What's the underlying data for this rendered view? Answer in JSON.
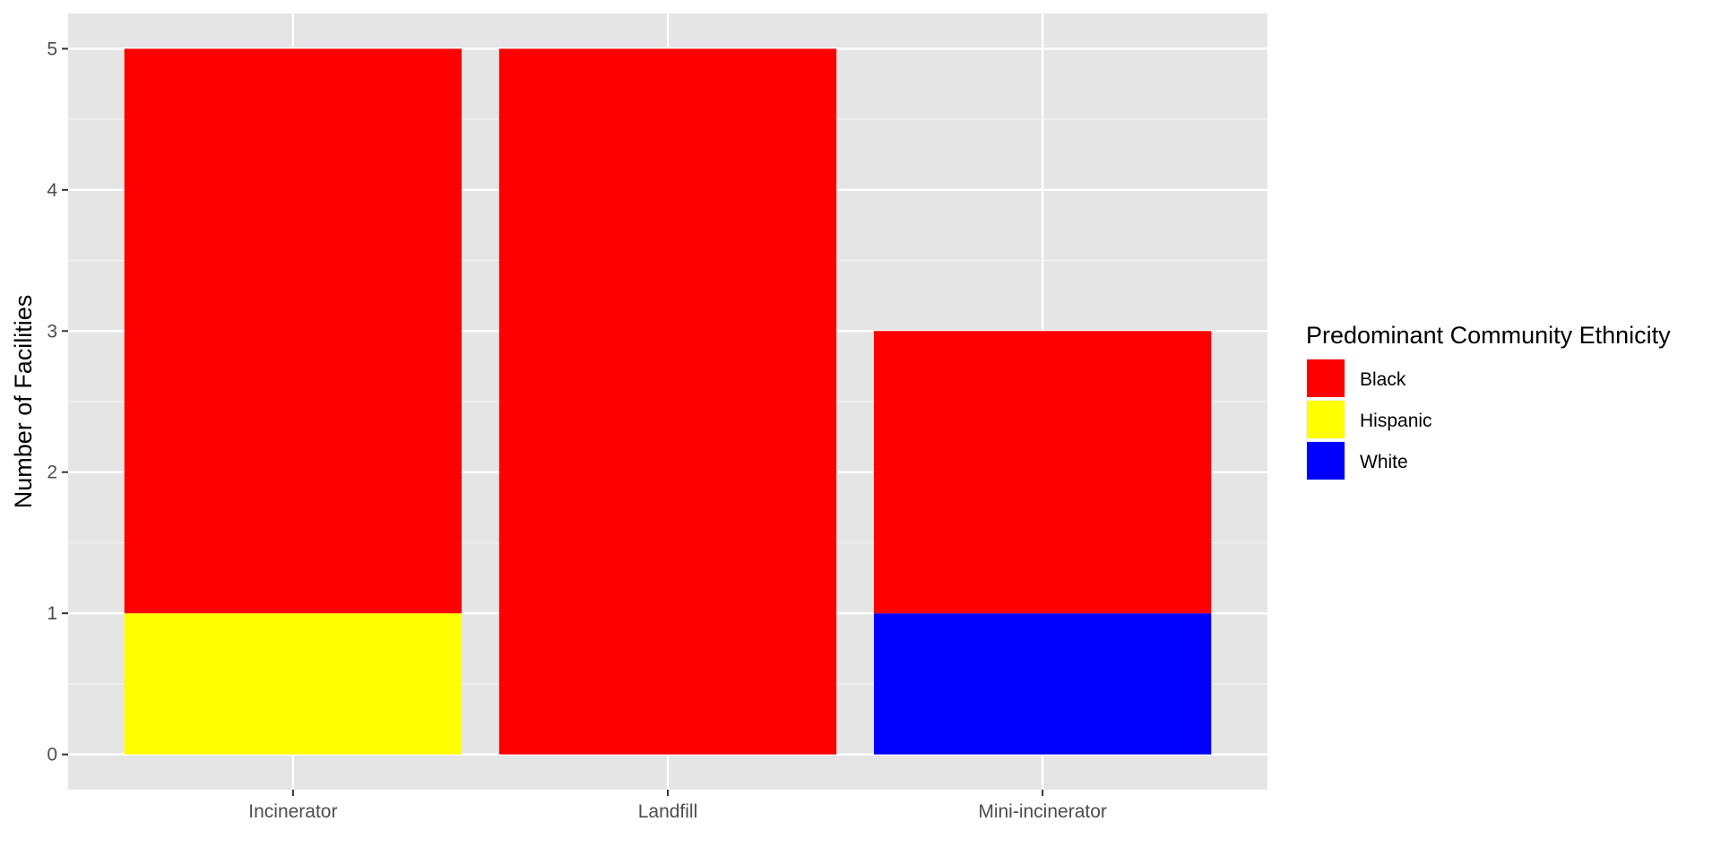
{
  "chart_data": {
    "type": "bar",
    "stacked": true,
    "title": "",
    "xlabel": "",
    "ylabel": "Number of Facilities",
    "categories": [
      "Incinerator",
      "Landfill",
      "Mini-incinerator"
    ],
    "ylim": [
      0,
      5.25
    ],
    "yticks": [
      0,
      1,
      2,
      3,
      4,
      5
    ],
    "grid": true,
    "legend": {
      "title": "Predominant Community Ethnicity",
      "placement": "right"
    },
    "series": [
      {
        "name": "White",
        "color": "#0000FF",
        "values": [
          0,
          0,
          1
        ]
      },
      {
        "name": "Hispanic",
        "color": "#FFFF00",
        "values": [
          1,
          0,
          0
        ]
      },
      {
        "name": "Black",
        "color": "#FF0000",
        "values": [
          4,
          5,
          2
        ]
      }
    ],
    "legend_order": [
      "Black",
      "Hispanic",
      "White"
    ],
    "colors": {
      "panel_background": "#E5E5E5",
      "grid_major": "#FFFFFF",
      "grid_minor": "#F2F2F2",
      "tick_text": "#4D4D4D",
      "axis_title": "#000000"
    }
  }
}
